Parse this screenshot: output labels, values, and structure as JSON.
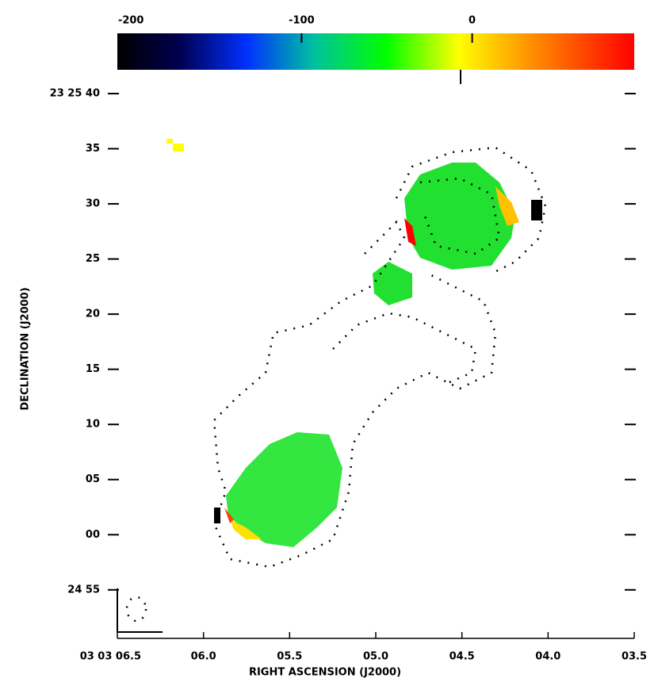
{
  "chart_data": {
    "type": "image",
    "xlabel": "RIGHT ASCENSION (J2000)",
    "ylabel": "DECLINATION (J2000)",
    "xlim": [
      6.5,
      3.5
    ],
    "xticks": [
      {
        "value": 6.5,
        "label": "03 03 06.5"
      },
      {
        "value": 6.0,
        "label": "06.0"
      },
      {
        "value": 5.5,
        "label": "05.5"
      },
      {
        "value": 5.0,
        "label": "05.0"
      },
      {
        "value": 4.5,
        "label": "04.5"
      },
      {
        "value": 4.0,
        "label": "04.0"
      },
      {
        "value": 3.5,
        "label": "03.5"
      }
    ],
    "ylim": [
      -9.4,
      40
    ],
    "yticks": [
      {
        "value": 40,
        "label": "23 25 40"
      },
      {
        "value": 35,
        "label": "35"
      },
      {
        "value": 30,
        "label": "30"
      },
      {
        "value": 25,
        "label": "25"
      },
      {
        "value": 20,
        "label": "20"
      },
      {
        "value": 15,
        "label": "15"
      },
      {
        "value": 10,
        "label": "10"
      },
      {
        "value": 5,
        "label": "05"
      },
      {
        "value": 0,
        "label": "00"
      },
      {
        "value": -5,
        "label": "24 55"
      }
    ],
    "colorbar": {
      "lim": [
        -208,
        95
      ],
      "ticks": [
        -200,
        -100,
        0
      ]
    }
  }
}
